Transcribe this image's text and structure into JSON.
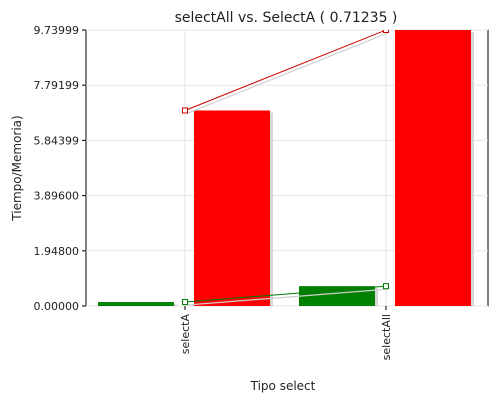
{
  "chart_data": {
    "type": "bar",
    "title": "selectAll vs. SelectA ( 0.71235 )",
    "xlabel": "Tipo select",
    "ylabel": "Tiempo/Memoria)",
    "categories": [
      "selectA",
      "selectAll"
    ],
    "ylim": [
      0,
      9.73999
    ],
    "yticks": [
      "0.00000",
      "1.94800",
      "3.89600",
      "5.84399",
      "7.79199",
      "9.73999"
    ],
    "grid": true,
    "series": [
      {
        "color": "#008000",
        "values": [
          0.14,
          0.7
        ]
      },
      {
        "color": "#ff0000",
        "values": [
          6.9,
          9.73999
        ]
      }
    ]
  }
}
